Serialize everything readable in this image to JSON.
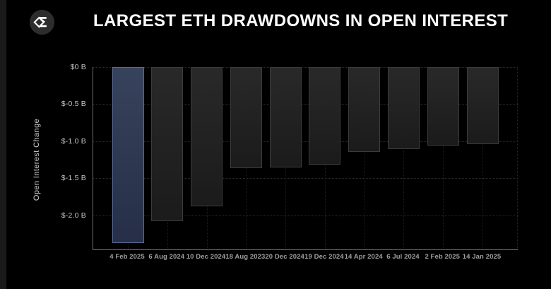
{
  "header": {
    "title": "LARGEST ETH DRAWDOWNS IN OPEN INTEREST",
    "logo_icon": "sigma-diamond-icon"
  },
  "chart": {
    "y_axis_title": "Open Interest Change"
  },
  "colors": {
    "background": "#000000",
    "highlight_bar_top": "#37425c",
    "highlight_bar_bottom": "#262f47",
    "highlight_bar_border": "#5a6b94",
    "bar_top": "#292929",
    "bar_bottom": "#1b1b1b",
    "bar_border": "#3c3c3c",
    "gridline": "#2d2d2d",
    "axis_line": "#6e6e6e",
    "y_tick_label": "#c6c6c6",
    "x_tick_label": "#9e9e9e",
    "title_text": "#ffffff"
  },
  "chart_data": {
    "type": "bar",
    "title": "LARGEST ETH DRAWDOWNS IN OPEN INTEREST",
    "ylabel": "Open Interest Change",
    "xlabel": "",
    "unit": "billions USD",
    "categories": [
      "4 Feb 2025",
      "6 Aug 2024",
      "10 Dec 2024",
      "18 Aug 2023",
      "20 Dec 2024",
      "19 Dec 2024",
      "14 Apr 2024",
      "6 Jul 2024",
      "2 Feb 2025",
      "14 Jan 2025"
    ],
    "values": [
      -2.37,
      -2.08,
      -1.88,
      -1.36,
      -1.35,
      -1.32,
      -1.14,
      -1.11,
      -1.06,
      -1.04
    ],
    "highlighted_index": 0,
    "ylim": [
      -2.46,
      0
    ],
    "yticks": [
      {
        "label": "$0 B",
        "value": 0
      },
      {
        "label": "$-0.5 B",
        "value": -0.5
      },
      {
        "label": "$-1.0 B",
        "value": -1.0
      },
      {
        "label": "$-1.5 B",
        "value": -1.5
      },
      {
        "label": "$-2.0 B",
        "value": -2.0
      }
    ],
    "grid": "horizontal-dotted",
    "legend": "none"
  }
}
